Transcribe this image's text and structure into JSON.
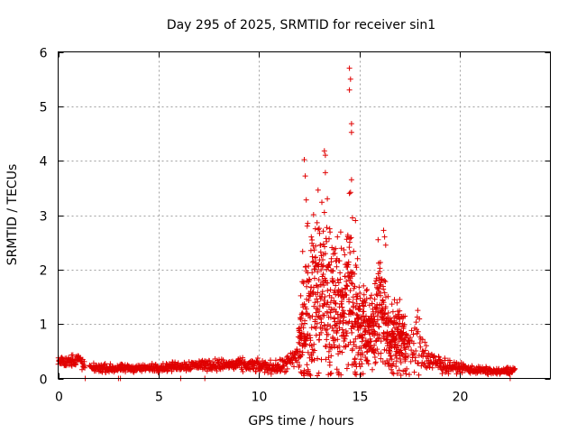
{
  "chart_data": {
    "type": "scatter",
    "title": "Day 295 of 2025, SRMTID for receiver sin1",
    "xlabel": "GPS time / hours",
    "ylabel": "SRMTID / TECUs",
    "xlim": [
      0,
      24.5
    ],
    "ylim": [
      0,
      6
    ],
    "xticks": [
      0,
      5,
      10,
      15,
      20
    ],
    "yticks": [
      0,
      1,
      2,
      3,
      4,
      5,
      6
    ],
    "grid": true,
    "marker": "+",
    "color": "#e00000",
    "profile": [
      [
        0.0,
        0.3,
        0.06
      ],
      [
        1.0,
        0.35,
        0.1
      ],
      [
        1.4,
        0.2,
        0.05
      ],
      [
        3.0,
        0.18,
        0.05
      ],
      [
        5.0,
        0.2,
        0.05
      ],
      [
        7.0,
        0.25,
        0.07
      ],
      [
        9.0,
        0.25,
        0.08
      ],
      [
        11.0,
        0.2,
        0.08
      ],
      [
        11.8,
        0.35,
        0.15
      ],
      [
        12.2,
        1.0,
        0.9
      ],
      [
        12.6,
        1.5,
        1.0
      ],
      [
        13.0,
        1.6,
        1.0
      ],
      [
        13.5,
        1.4,
        1.0
      ],
      [
        14.0,
        1.2,
        0.8
      ],
      [
        14.5,
        1.6,
        1.1
      ],
      [
        15.0,
        1.0,
        0.6
      ],
      [
        15.5,
        0.8,
        0.4
      ],
      [
        16.0,
        1.4,
        0.8
      ],
      [
        16.5,
        0.7,
        0.4
      ],
      [
        17.0,
        0.8,
        0.5
      ],
      [
        17.5,
        0.5,
        0.3
      ],
      [
        18.0,
        0.6,
        0.4
      ],
      [
        18.5,
        0.3,
        0.15
      ],
      [
        19.5,
        0.22,
        0.07
      ],
      [
        21.0,
        0.15,
        0.05
      ],
      [
        22.0,
        0.12,
        0.04
      ],
      [
        23.0,
        0.18,
        0.05
      ]
    ],
    "outliers": [
      [
        12.25,
        4.02
      ],
      [
        12.3,
        3.72
      ],
      [
        12.35,
        3.28
      ],
      [
        12.4,
        2.8
      ],
      [
        12.6,
        2.6
      ],
      [
        12.8,
        2.75
      ],
      [
        13.25,
        4.18
      ],
      [
        13.3,
        4.1
      ],
      [
        13.3,
        3.78
      ],
      [
        13.25,
        3.05
      ],
      [
        13.4,
        3.3
      ],
      [
        13.9,
        2.6
      ],
      [
        14.5,
        5.7
      ],
      [
        14.55,
        5.5
      ],
      [
        14.5,
        5.3
      ],
      [
        14.6,
        4.68
      ],
      [
        14.6,
        4.52
      ],
      [
        14.6,
        3.65
      ],
      [
        14.5,
        3.4
      ],
      [
        14.55,
        3.42
      ],
      [
        14.65,
        2.95
      ],
      [
        14.8,
        2.9
      ],
      [
        14.9,
        2.2
      ],
      [
        16.2,
        2.72
      ],
      [
        16.25,
        2.6
      ],
      [
        16.3,
        2.45
      ],
      [
        17.0,
        1.45
      ],
      [
        17.9,
        1.25
      ],
      [
        13.1,
        2.1
      ],
      [
        13.6,
        2.2
      ],
      [
        15.2,
        1.7
      ],
      [
        16.0,
        1.85
      ],
      [
        12.9,
        0.05
      ],
      [
        1.35,
        0.0
      ],
      [
        3.0,
        0.0
      ],
      [
        3.1,
        0.0
      ],
      [
        6.1,
        0.0
      ],
      [
        7.3,
        0.0
      ],
      [
        22.5,
        0.0
      ]
    ],
    "gaps": [
      [
        1.35,
        1.55
      ],
      [
        22.75,
        24.5
      ]
    ]
  }
}
